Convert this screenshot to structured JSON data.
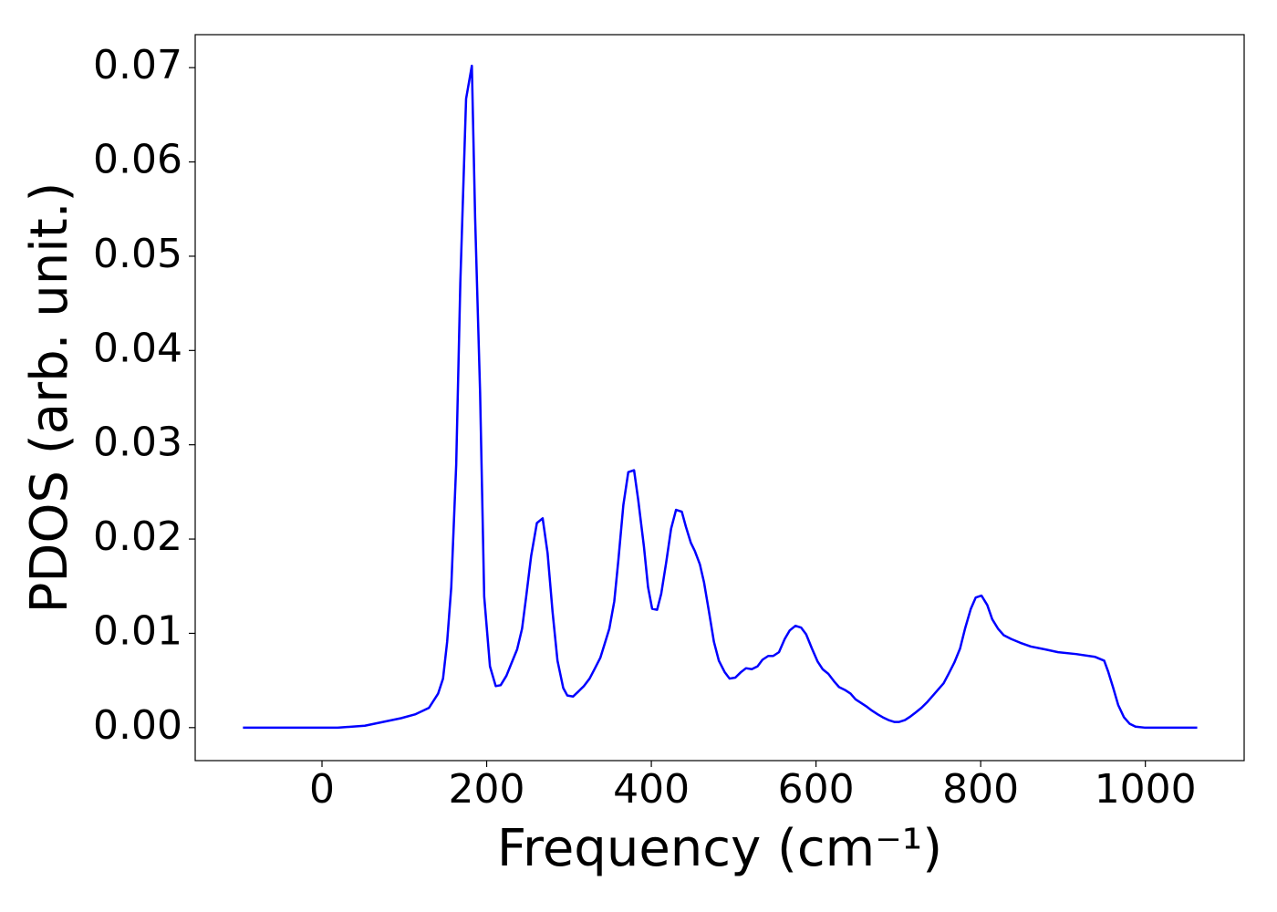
{
  "chart_data": {
    "type": "line",
    "xlabel": "Frequency (cm⁻¹)",
    "ylabel": "PDOS (arb. unit.)",
    "xlim": [
      -154,
      1120
    ],
    "ylim": [
      -0.0035,
      0.0735
    ],
    "xticks": [
      0,
      200,
      400,
      600,
      800,
      1000
    ],
    "yticks": [
      {
        "value": 0,
        "label": "0.00"
      },
      {
        "value": 0.01,
        "label": "0.01"
      },
      {
        "value": 0.02,
        "label": "0.02"
      },
      {
        "value": 0.03,
        "label": "0.03"
      },
      {
        "value": 0.04,
        "label": "0.04"
      },
      {
        "value": 0.05,
        "label": "0.05"
      },
      {
        "value": 0.06,
        "label": "0.06"
      },
      {
        "value": 0.07,
        "label": "0.07"
      }
    ],
    "grid": false,
    "series": [
      {
        "color": "#0000ff",
        "x": [
          -96,
          0,
          19,
          52,
          96,
          113,
          130,
          141,
          147,
          152,
          157,
          163,
          168,
          175,
          182,
          186,
          192,
          197,
          204,
          211,
          217,
          224,
          230,
          237,
          243,
          248,
          254,
          261,
          268,
          274,
          280,
          286,
          293,
          298,
          305,
          311,
          318,
          325,
          331,
          338,
          343,
          349,
          355,
          360,
          366,
          372,
          379,
          384,
          391,
          396,
          401,
          407,
          412,
          418,
          424,
          430,
          437,
          442,
          448,
          453,
          459,
          464,
          470,
          476,
          482,
          489,
          495,
          502,
          509,
          515,
          522,
          529,
          535,
          542,
          548,
          555,
          562,
          568,
          575,
          582,
          588,
          595,
          602,
          608,
          615,
          622,
          628,
          635,
          642,
          648,
          655,
          662,
          668,
          675,
          681,
          688,
          695,
          701,
          708,
          715,
          721,
          728,
          735,
          741,
          748,
          755,
          761,
          768,
          775,
          781,
          788,
          794,
          801,
          808,
          814,
          821,
          828,
          837,
          848,
          861,
          878,
          894,
          916,
          939,
          950,
          955,
          961,
          967,
          974,
          981,
          988,
          999,
          1063
        ],
        "values": [
          0,
          0,
          0,
          0.0002,
          0.001,
          0.0014,
          0.0021,
          0.0036,
          0.0052,
          0.0091,
          0.0149,
          0.0279,
          0.0472,
          0.0667,
          0.0702,
          0.054,
          0.0356,
          0.0139,
          0.0065,
          0.0044,
          0.0045,
          0.0055,
          0.0068,
          0.0083,
          0.0105,
          0.0139,
          0.0182,
          0.0217,
          0.0222,
          0.0185,
          0.0123,
          0.0071,
          0.0042,
          0.0034,
          0.0033,
          0.0038,
          0.0044,
          0.0052,
          0.0062,
          0.0074,
          0.0088,
          0.0105,
          0.0134,
          0.0178,
          0.0236,
          0.0271,
          0.0273,
          0.0242,
          0.0192,
          0.0149,
          0.0126,
          0.0125,
          0.0142,
          0.0175,
          0.0211,
          0.0231,
          0.0229,
          0.0213,
          0.0196,
          0.0187,
          0.0173,
          0.0154,
          0.0123,
          0.0091,
          0.0071,
          0.0059,
          0.0052,
          0.0053,
          0.0059,
          0.0063,
          0.0062,
          0.0065,
          0.0072,
          0.0076,
          0.0076,
          0.008,
          0.0094,
          0.0103,
          0.0108,
          0.0106,
          0.0099,
          0.0084,
          0.007,
          0.0062,
          0.0057,
          0.0049,
          0.0043,
          0.004,
          0.0036,
          0.003,
          0.0026,
          0.0022,
          0.0018,
          0.0014,
          0.0011,
          0.0008,
          0.0006,
          0.0006,
          0.0008,
          0.0012,
          0.0016,
          0.0021,
          0.0027,
          0.0033,
          0.004,
          0.0047,
          0.0057,
          0.0069,
          0.0084,
          0.0105,
          0.0126,
          0.0138,
          0.014,
          0.013,
          0.0115,
          0.0105,
          0.0098,
          0.0094,
          0.009,
          0.0086,
          0.0083,
          0.008,
          0.0078,
          0.0075,
          0.0071,
          0.0059,
          0.0042,
          0.0024,
          0.0011,
          0.0004,
          0.0001,
          0,
          0
        ]
      }
    ]
  }
}
